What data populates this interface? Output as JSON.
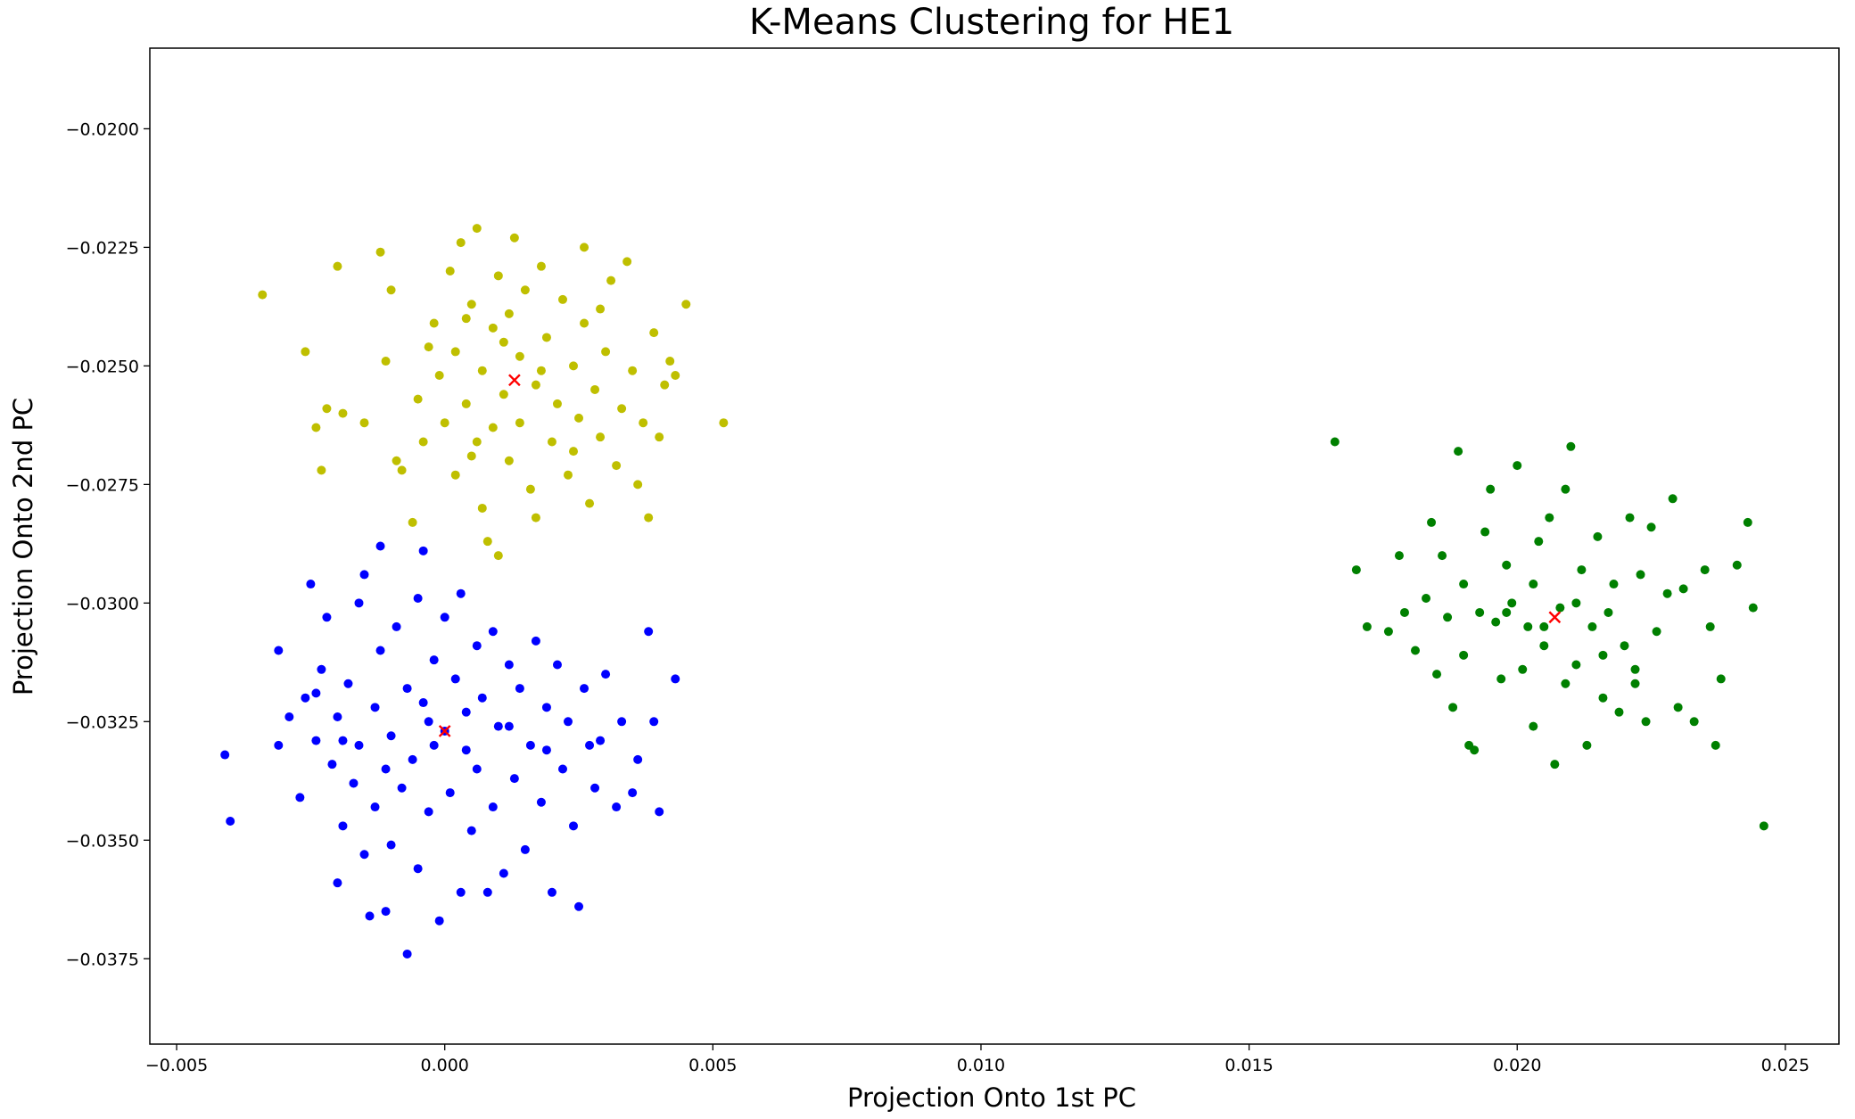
{
  "chart_data": {
    "type": "scatter",
    "title": "K-Means Clustering for HE1",
    "xlabel": "Projection Onto 1st PC",
    "ylabel": "Projection Onto 2nd PC",
    "xlim": [
      -0.0055,
      0.026
    ],
    "ylim": [
      -0.0393,
      -0.0183
    ],
    "x_ticks": [
      -0.005,
      0.0,
      0.005,
      0.01,
      0.015,
      0.02,
      0.025
    ],
    "x_tick_labels": [
      "−0.005",
      "0.000",
      "0.005",
      "0.010",
      "0.015",
      "0.020",
      "0.025"
    ],
    "y_ticks": [
      -0.02,
      -0.0225,
      -0.025,
      -0.0275,
      -0.03,
      -0.0325,
      -0.035,
      -0.0375
    ],
    "y_tick_labels": [
      "−0.0200",
      "−0.0225",
      "−0.0250",
      "−0.0275",
      "−0.0300",
      "−0.0325",
      "−0.0350",
      "−0.0375"
    ],
    "grid": false,
    "legend": "none",
    "series": [
      {
        "color": "#bfbf00",
        "marker": "dot",
        "points": [
          [
            -0.0034,
            -0.0235
          ],
          [
            -0.0026,
            -0.0247
          ],
          [
            -0.0024,
            -0.0263
          ],
          [
            -0.0023,
            -0.0272
          ],
          [
            -0.0022,
            -0.0259
          ],
          [
            -0.002,
            -0.0229
          ],
          [
            -0.0019,
            -0.026
          ],
          [
            -0.0015,
            -0.0262
          ],
          [
            -0.0012,
            -0.0226
          ],
          [
            -0.0011,
            -0.0249
          ],
          [
            -0.001,
            -0.0234
          ],
          [
            -0.0009,
            -0.027
          ],
          [
            -0.0008,
            -0.0272
          ],
          [
            -0.0006,
            -0.0283
          ],
          [
            -0.0005,
            -0.0257
          ],
          [
            -0.0004,
            -0.0266
          ],
          [
            -0.0002,
            -0.0241
          ],
          [
            -0.0001,
            -0.0252
          ],
          [
            0.0,
            -0.0262
          ],
          [
            0.0001,
            -0.023
          ],
          [
            0.0002,
            -0.0247
          ],
          [
            0.0002,
            -0.0273
          ],
          [
            0.0003,
            -0.0224
          ],
          [
            0.0004,
            -0.0258
          ],
          [
            0.0005,
            -0.0237
          ],
          [
            0.0005,
            -0.0269
          ],
          [
            0.0006,
            -0.0221
          ],
          [
            0.0007,
            -0.0251
          ],
          [
            0.0007,
            -0.028
          ],
          [
            0.0008,
            -0.0287
          ],
          [
            0.0009,
            -0.0242
          ],
          [
            0.0009,
            -0.0263
          ],
          [
            0.001,
            -0.0231
          ],
          [
            0.001,
            -0.029
          ],
          [
            0.0011,
            -0.0256
          ],
          [
            0.0012,
            -0.0239
          ],
          [
            0.0012,
            -0.027
          ],
          [
            0.0013,
            -0.0223
          ],
          [
            0.0014,
            -0.0248
          ],
          [
            0.0014,
            -0.0262
          ],
          [
            0.0015,
            -0.0234
          ],
          [
            0.0016,
            -0.0276
          ],
          [
            0.0017,
            -0.0254
          ],
          [
            0.0017,
            -0.0282
          ],
          [
            0.0018,
            -0.0229
          ],
          [
            0.0019,
            -0.0244
          ],
          [
            0.002,
            -0.0266
          ],
          [
            0.0021,
            -0.0258
          ],
          [
            0.0022,
            -0.0236
          ],
          [
            0.0023,
            -0.0273
          ],
          [
            0.0024,
            -0.025
          ],
          [
            0.0025,
            -0.0261
          ],
          [
            0.0026,
            -0.0241
          ],
          [
            0.0026,
            -0.0225
          ],
          [
            0.0027,
            -0.0279
          ],
          [
            0.0028,
            -0.0255
          ],
          [
            0.0029,
            -0.0265
          ],
          [
            0.003,
            -0.0247
          ],
          [
            0.0031,
            -0.0232
          ],
          [
            0.0032,
            -0.0271
          ],
          [
            0.0033,
            -0.0259
          ],
          [
            0.0034,
            -0.0228
          ],
          [
            0.0035,
            -0.0251
          ],
          [
            0.0036,
            -0.0275
          ],
          [
            0.0037,
            -0.0262
          ],
          [
            0.0038,
            -0.0282
          ],
          [
            0.0039,
            -0.0243
          ],
          [
            0.004,
            -0.0265
          ],
          [
            0.0041,
            -0.0254
          ],
          [
            0.0042,
            -0.0249
          ],
          [
            0.0043,
            -0.0252
          ],
          [
            0.0045,
            -0.0237
          ],
          [
            0.0052,
            -0.0262
          ],
          [
            -0.0003,
            -0.0246
          ],
          [
            0.0004,
            -0.024
          ],
          [
            0.0011,
            -0.0245
          ],
          [
            0.0018,
            -0.0251
          ],
          [
            0.0024,
            -0.0268
          ],
          [
            0.0029,
            -0.0238
          ],
          [
            0.0006,
            -0.0266
          ]
        ]
      },
      {
        "color": "#0000ff",
        "marker": "dot",
        "points": [
          [
            -0.0041,
            -0.0332
          ],
          [
            -0.004,
            -0.0346
          ],
          [
            -0.0031,
            -0.031
          ],
          [
            -0.0031,
            -0.033
          ],
          [
            -0.0029,
            -0.0324
          ],
          [
            -0.0027,
            -0.0341
          ],
          [
            -0.0026,
            -0.032
          ],
          [
            -0.0025,
            -0.0296
          ],
          [
            -0.0024,
            -0.0329
          ],
          [
            -0.0023,
            -0.0314
          ],
          [
            -0.0022,
            -0.0303
          ],
          [
            -0.0021,
            -0.0334
          ],
          [
            -0.002,
            -0.0359
          ],
          [
            -0.002,
            -0.0324
          ],
          [
            -0.0019,
            -0.0347
          ],
          [
            -0.0018,
            -0.0317
          ],
          [
            -0.0017,
            -0.0338
          ],
          [
            -0.0016,
            -0.03
          ],
          [
            -0.0016,
            -0.033
          ],
          [
            -0.0015,
            -0.0294
          ],
          [
            -0.0015,
            -0.0353
          ],
          [
            -0.0014,
            -0.0366
          ],
          [
            -0.0013,
            -0.0322
          ],
          [
            -0.0013,
            -0.0343
          ],
          [
            -0.0012,
            -0.0288
          ],
          [
            -0.0012,
            -0.031
          ],
          [
            -0.0011,
            -0.0365
          ],
          [
            -0.001,
            -0.0328
          ],
          [
            -0.001,
            -0.0351
          ],
          [
            -0.0009,
            -0.0305
          ],
          [
            -0.0008,
            -0.0339
          ],
          [
            -0.0007,
            -0.0318
          ],
          [
            -0.0007,
            -0.0374
          ],
          [
            -0.0006,
            -0.0333
          ],
          [
            -0.0005,
            -0.0299
          ],
          [
            -0.0005,
            -0.0356
          ],
          [
            -0.0004,
            -0.0289
          ],
          [
            -0.0004,
            -0.0321
          ],
          [
            -0.0003,
            -0.0344
          ],
          [
            -0.0002,
            -0.0312
          ],
          [
            -0.0002,
            -0.033
          ],
          [
            -0.0001,
            -0.0367
          ],
          [
            0.0,
            -0.0327
          ],
          [
            0.0,
            -0.0303
          ],
          [
            0.0001,
            -0.034
          ],
          [
            0.0002,
            -0.0316
          ],
          [
            0.0003,
            -0.0361
          ],
          [
            0.0003,
            -0.0298
          ],
          [
            0.0004,
            -0.0323
          ],
          [
            0.0005,
            -0.0348
          ],
          [
            0.0006,
            -0.0309
          ],
          [
            0.0006,
            -0.0335
          ],
          [
            0.0007,
            -0.032
          ],
          [
            0.0008,
            -0.0361
          ],
          [
            0.0009,
            -0.0306
          ],
          [
            0.0009,
            -0.0343
          ],
          [
            0.001,
            -0.0326
          ],
          [
            0.0011,
            -0.0357
          ],
          [
            0.0012,
            -0.0313
          ],
          [
            0.0013,
            -0.0337
          ],
          [
            0.0014,
            -0.0318
          ],
          [
            0.0015,
            -0.0352
          ],
          [
            0.0016,
            -0.033
          ],
          [
            0.0017,
            -0.0308
          ],
          [
            0.0018,
            -0.0342
          ],
          [
            0.0019,
            -0.0322
          ],
          [
            0.002,
            -0.0361
          ],
          [
            0.0021,
            -0.0313
          ],
          [
            0.0022,
            -0.0335
          ],
          [
            0.0023,
            -0.0325
          ],
          [
            0.0024,
            -0.0347
          ],
          [
            0.0025,
            -0.0364
          ],
          [
            0.0026,
            -0.0318
          ],
          [
            0.0027,
            -0.033
          ],
          [
            0.0028,
            -0.0339
          ],
          [
            0.0029,
            -0.0329
          ],
          [
            0.003,
            -0.0315
          ],
          [
            0.0032,
            -0.0343
          ],
          [
            0.0033,
            -0.0325
          ],
          [
            0.0035,
            -0.034
          ],
          [
            0.0036,
            -0.0333
          ],
          [
            0.0038,
            -0.0306
          ],
          [
            0.0039,
            -0.0325
          ],
          [
            0.004,
            -0.0344
          ],
          [
            0.0043,
            -0.0316
          ],
          [
            -0.0024,
            -0.0319
          ],
          [
            -0.0019,
            -0.0329
          ],
          [
            -0.0011,
            -0.0335
          ],
          [
            -0.0003,
            -0.0325
          ],
          [
            0.0004,
            -0.0331
          ],
          [
            0.0012,
            -0.0326
          ],
          [
            0.0019,
            -0.0331
          ]
        ]
      },
      {
        "color": "#008000",
        "marker": "dot",
        "points": [
          [
            0.0166,
            -0.0266
          ],
          [
            0.017,
            -0.0293
          ],
          [
            0.0172,
            -0.0305
          ],
          [
            0.0176,
            -0.0306
          ],
          [
            0.0178,
            -0.029
          ],
          [
            0.0179,
            -0.0302
          ],
          [
            0.0181,
            -0.031
          ],
          [
            0.0183,
            -0.0299
          ],
          [
            0.0184,
            -0.0283
          ],
          [
            0.0185,
            -0.0315
          ],
          [
            0.0186,
            -0.029
          ],
          [
            0.0187,
            -0.0303
          ],
          [
            0.0188,
            -0.0322
          ],
          [
            0.0189,
            -0.0268
          ],
          [
            0.019,
            -0.0296
          ],
          [
            0.019,
            -0.0311
          ],
          [
            0.0191,
            -0.033
          ],
          [
            0.0192,
            -0.0331
          ],
          [
            0.0193,
            -0.0302
          ],
          [
            0.0194,
            -0.0285
          ],
          [
            0.0195,
            -0.0276
          ],
          [
            0.0196,
            -0.0304
          ],
          [
            0.0197,
            -0.0316
          ],
          [
            0.0198,
            -0.0292
          ],
          [
            0.0199,
            -0.03
          ],
          [
            0.02,
            -0.0271
          ],
          [
            0.0201,
            -0.0314
          ],
          [
            0.0202,
            -0.0305
          ],
          [
            0.0203,
            -0.0326
          ],
          [
            0.0204,
            -0.0287
          ],
          [
            0.0205,
            -0.0309
          ],
          [
            0.0206,
            -0.0282
          ],
          [
            0.0207,
            -0.0334
          ],
          [
            0.0208,
            -0.0301
          ],
          [
            0.0209,
            -0.0276
          ],
          [
            0.021,
            -0.0267
          ],
          [
            0.0211,
            -0.0313
          ],
          [
            0.0212,
            -0.0293
          ],
          [
            0.0213,
            -0.033
          ],
          [
            0.0214,
            -0.0305
          ],
          [
            0.0215,
            -0.0286
          ],
          [
            0.0216,
            -0.032
          ],
          [
            0.0217,
            -0.0302
          ],
          [
            0.0218,
            -0.0296
          ],
          [
            0.0219,
            -0.0323
          ],
          [
            0.022,
            -0.0309
          ],
          [
            0.0221,
            -0.0282
          ],
          [
            0.0222,
            -0.0317
          ],
          [
            0.0223,
            -0.0294
          ],
          [
            0.0224,
            -0.0325
          ],
          [
            0.0225,
            -0.0284
          ],
          [
            0.0226,
            -0.0306
          ],
          [
            0.0228,
            -0.0298
          ],
          [
            0.0229,
            -0.0278
          ],
          [
            0.023,
            -0.0322
          ],
          [
            0.0231,
            -0.0297
          ],
          [
            0.0233,
            -0.0325
          ],
          [
            0.0235,
            -0.0293
          ],
          [
            0.0236,
            -0.0305
          ],
          [
            0.0237,
            -0.033
          ],
          [
            0.0238,
            -0.0316
          ],
          [
            0.0241,
            -0.0292
          ],
          [
            0.0243,
            -0.0283
          ],
          [
            0.0244,
            -0.0301
          ],
          [
            0.0246,
            -0.0347
          ],
          [
            0.0198,
            -0.0302
          ],
          [
            0.0205,
            -0.0305
          ],
          [
            0.0211,
            -0.03
          ],
          [
            0.0216,
            -0.0311
          ],
          [
            0.0222,
            -0.0314
          ],
          [
            0.0203,
            -0.0296
          ],
          [
            0.0209,
            -0.0317
          ]
        ]
      },
      {
        "color": "#ff0000",
        "marker": "x",
        "points": [
          [
            0.0013,
            -0.0253
          ],
          [
            0.0,
            -0.0327
          ],
          [
            0.0207,
            -0.0303
          ]
        ]
      }
    ]
  }
}
